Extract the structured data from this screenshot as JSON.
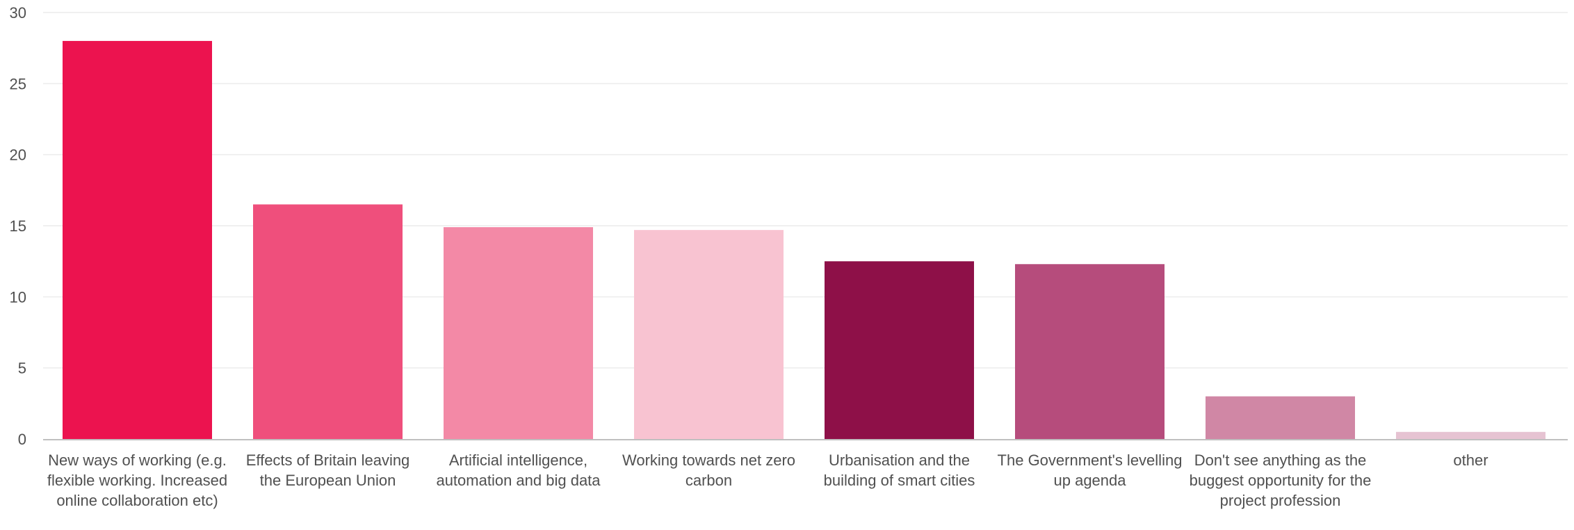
{
  "chart_data": {
    "type": "bar",
    "title": "",
    "xlabel": "",
    "ylabel": "",
    "ylim": [
      0,
      30
    ],
    "yticks": [
      0,
      5,
      10,
      15,
      20,
      25,
      30
    ],
    "grid": true,
    "legend": "none",
    "categories": [
      "New ways of working (e.g. flexible working. Increased online collaboration etc)",
      "Effects of Britain leaving the European Union",
      "Artificial intelligence, automation and big data",
      "Working towards net zero carbon",
      "Urbanisation and the building of smart cities",
      "The Government's levelling up agenda",
      "Don't see anything as the buggest opportunity for the project profession",
      "other"
    ],
    "values": [
      28.0,
      16.5,
      14.9,
      14.7,
      12.5,
      12.3,
      3.0,
      0.5
    ],
    "colors": [
      "#EC134F",
      "#EF4F7C",
      "#F389A6",
      "#F8C3D1",
      "#8E1048",
      "#B64C7C",
      "#D087A5",
      "#E6C3D2"
    ]
  }
}
